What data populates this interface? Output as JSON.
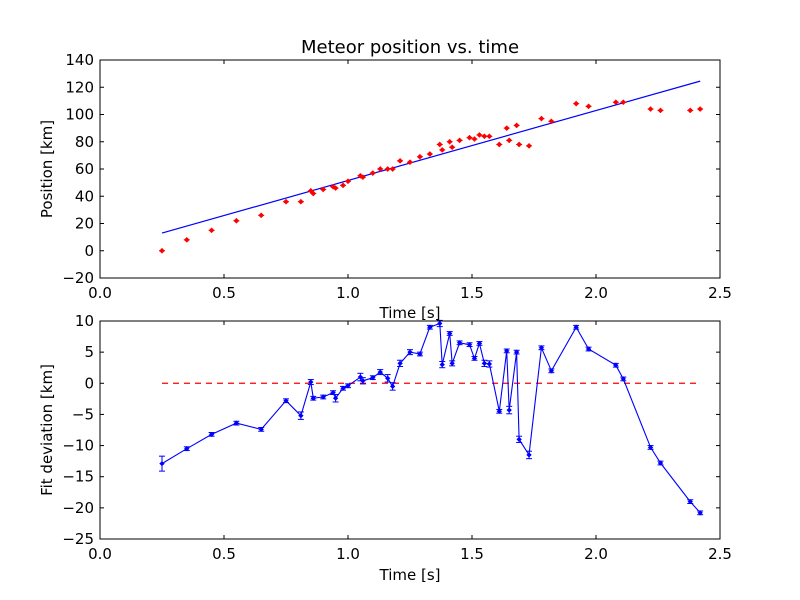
{
  "chart_data": [
    {
      "type": "scatter",
      "title": "Meteor position vs. time",
      "xlabel": "Time [s]",
      "ylabel": "Position [km]",
      "xlim": [
        0.0,
        2.5
      ],
      "ylim": [
        -20,
        140
      ],
      "xticks": [
        "0.0",
        "0.5",
        "1.0",
        "1.5",
        "2.0",
        "2.5"
      ],
      "yticks": [
        "−20",
        "0",
        "20",
        "40",
        "60",
        "80",
        "100",
        "120",
        "140"
      ],
      "grid": false,
      "series": [
        {
          "style": "points with error bars",
          "color": "#ff0000",
          "x": [
            0.25,
            0.35,
            0.45,
            0.55,
            0.65,
            0.75,
            0.81,
            0.85,
            0.86,
            0.9,
            0.94,
            0.95,
            0.98,
            1.0,
            1.05,
            1.06,
            1.1,
            1.13,
            1.16,
            1.18,
            1.21,
            1.25,
            1.29,
            1.33,
            1.37,
            1.38,
            1.41,
            1.42,
            1.45,
            1.49,
            1.51,
            1.53,
            1.55,
            1.57,
            1.61,
            1.64,
            1.65,
            1.68,
            1.69,
            1.73,
            1.78,
            1.82,
            1.92,
            1.97,
            2.08,
            2.11,
            2.22,
            2.26,
            2.38,
            2.42
          ],
          "y": [
            0,
            8,
            15,
            22,
            26,
            36,
            36,
            44,
            42,
            45,
            47,
            46,
            48,
            51,
            55,
            54,
            57,
            60,
            60,
            60,
            66,
            65,
            69,
            71,
            78,
            74,
            80,
            76,
            81,
            83,
            82,
            85,
            84,
            84,
            78,
            90,
            81,
            92,
            78,
            77,
            97,
            95,
            108,
            106,
            109,
            109,
            104,
            103,
            103,
            104
          ]
        },
        {
          "style": "linear fit",
          "color": "#0000ff",
          "x": [
            0.25,
            2.42
          ],
          "y": [
            13,
            124.5
          ]
        }
      ]
    },
    {
      "type": "line",
      "title": "",
      "xlabel": "Time [s]",
      "ylabel": "Fit deviation [km]",
      "xlim": [
        0.0,
        2.5
      ],
      "ylim": [
        -25,
        10
      ],
      "xticks": [
        "0.0",
        "0.5",
        "1.0",
        "1.5",
        "2.0",
        "2.5"
      ],
      "yticks": [
        "−25",
        "−20",
        "−15",
        "−10",
        "−5",
        "0",
        "5",
        "10"
      ],
      "grid": false,
      "series": [
        {
          "style": "line with error bars",
          "color": "#0000ff",
          "x": [
            0.25,
            0.35,
            0.45,
            0.55,
            0.65,
            0.75,
            0.81,
            0.85,
            0.86,
            0.9,
            0.94,
            0.95,
            0.98,
            1.0,
            1.05,
            1.06,
            1.1,
            1.13,
            1.16,
            1.18,
            1.21,
            1.25,
            1.29,
            1.33,
            1.37,
            1.38,
            1.41,
            1.42,
            1.45,
            1.49,
            1.51,
            1.53,
            1.55,
            1.57,
            1.61,
            1.64,
            1.65,
            1.68,
            1.69,
            1.73,
            1.78,
            1.82,
            1.92,
            1.97,
            2.08,
            2.11,
            2.22,
            2.26,
            2.38,
            2.42
          ],
          "y": [
            -12.9,
            -10.5,
            -8.2,
            -6.4,
            -7.4,
            -2.8,
            -5.2,
            0.2,
            -2.4,
            -2.2,
            -1.5,
            -2.4,
            -0.8,
            -0.4,
            1.0,
            0.4,
            0.9,
            1.8,
            0.8,
            -0.5,
            3.2,
            5.0,
            4.7,
            9.0,
            9.6,
            3.0,
            8.0,
            3.2,
            6.5,
            6.2,
            4.0,
            6.4,
            3.2,
            3.1,
            -4.5,
            5.2,
            -4.3,
            5.0,
            -9.0,
            -11.5,
            5.7,
            2.0,
            9.0,
            5.5,
            2.9,
            0.7,
            -10.3,
            -12.8,
            -19.0,
            -20.8
          ],
          "err": [
            1.2,
            0.3,
            0.3,
            0.3,
            0.3,
            0.3,
            0.6,
            0.4,
            0.3,
            0.3,
            0.3,
            0.6,
            0.3,
            0.3,
            0.6,
            0.5,
            0.3,
            0.4,
            0.6,
            0.6,
            0.5,
            0.4,
            0.3,
            0.3,
            0.5,
            0.5,
            0.3,
            0.4,
            0.3,
            0.3,
            0.3,
            0.3,
            0.5,
            0.5,
            0.3,
            0.3,
            0.6,
            0.3,
            0.5,
            0.6,
            0.3,
            0.3,
            0.3,
            0.3,
            0.3,
            0.3,
            0.3,
            0.3,
            0.3,
            0.3
          ]
        },
        {
          "style": "zero reference (dashed)",
          "color": "#ff0000",
          "x": [
            0.25,
            2.42
          ],
          "y": [
            0,
            0
          ]
        }
      ]
    }
  ]
}
